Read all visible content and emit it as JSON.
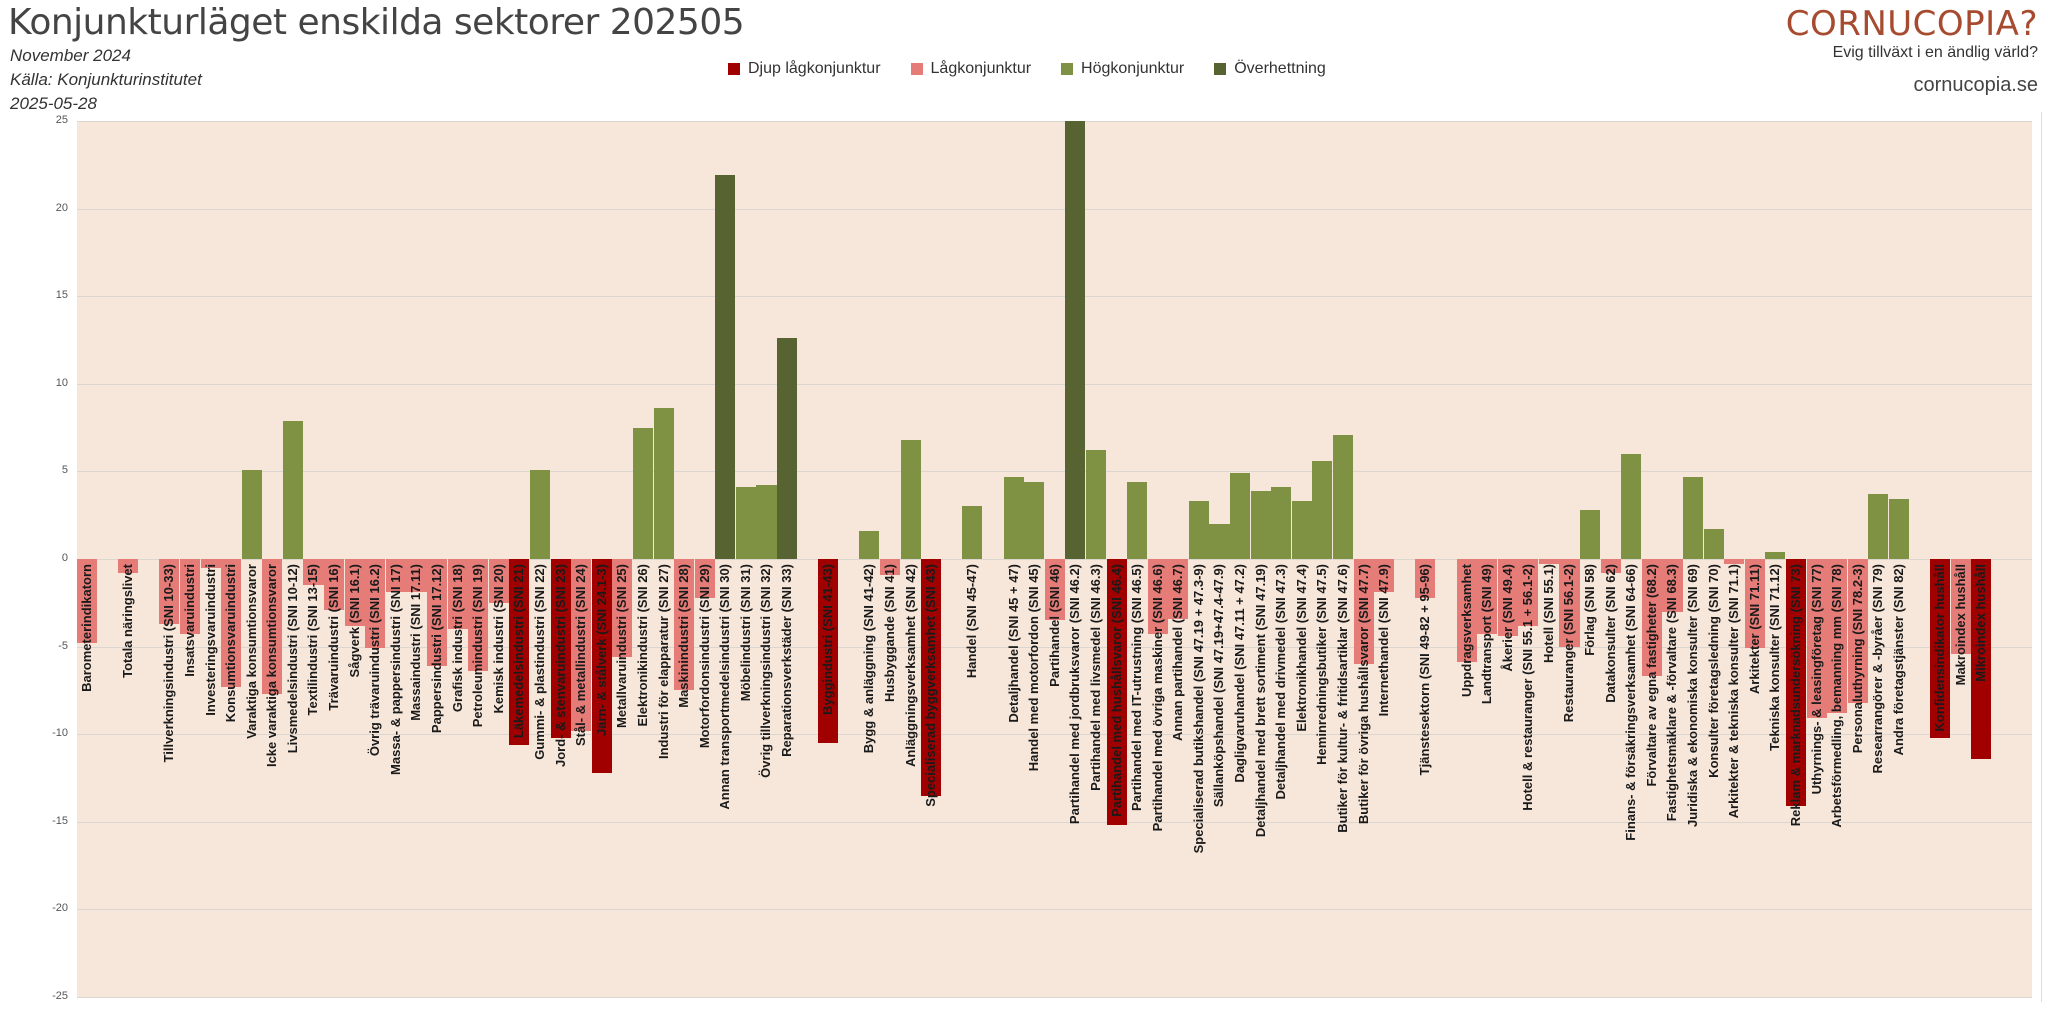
{
  "header": {
    "title": "Konjunkturläget enskilda sektorer 202505",
    "subtitle1": "November 2024",
    "subtitle2": "Källa: Konjunkturinstitutet",
    "subtitle3": "2025-05-28"
  },
  "logo": {
    "name": "CORNUCOPIA?",
    "tagline": "Evig tillväxt i en ändlig värld?",
    "url": "cornucopia.se"
  },
  "chart_data": {
    "type": "bar",
    "title": "Konjunkturläget enskilda sektorer 202505",
    "ylim": [
      -25,
      25
    ],
    "yticks": [
      25,
      20,
      15,
      10,
      5,
      0,
      -5,
      -10,
      -15,
      -20,
      -25
    ],
    "grid": true,
    "legend_position": "top-center",
    "legend": [
      {
        "key": "djup",
        "label": "Djup lågkonjunktur",
        "color": "#a00000"
      },
      {
        "key": "lag",
        "label": "Lågkonjunktur",
        "color": "#e57c78"
      },
      {
        "key": "hog",
        "label": "Högkonjunktur",
        "color": "#7f9143"
      },
      {
        "key": "over",
        "label": "Överhettning",
        "color": "#576331"
      }
    ],
    "bars": [
      {
        "label": "Barometerindikatorn",
        "value": -4.8,
        "cls": "lag"
      },
      {
        "label": "",
        "value": null,
        "cls": ""
      },
      {
        "label": "Totala näringslivet",
        "value": -0.8,
        "cls": "lag"
      },
      {
        "label": "",
        "value": null,
        "cls": ""
      },
      {
        "label": "Tillverkningsindustri (SNI 10-33)",
        "value": -3.7,
        "cls": "lag"
      },
      {
        "label": "Insatsvaruindustri",
        "value": -4.3,
        "cls": "lag"
      },
      {
        "label": "Investeringsvaruindustri",
        "value": -0.5,
        "cls": "lag"
      },
      {
        "label": "Konsumtionsvaruindustri",
        "value": -7.3,
        "cls": "lag"
      },
      {
        "label": "Varaktiga konsumtionsvaror",
        "value": 5.1,
        "cls": "hog"
      },
      {
        "label": "Icke varaktiga konsumtionsvaror",
        "value": -7.7,
        "cls": "lag"
      },
      {
        "label": "Livsmedelsindustri (SNI 10-12)",
        "value": 7.9,
        "cls": "hog"
      },
      {
        "label": "Textilindustri (SNI 13-15)",
        "value": -1.5,
        "cls": "lag"
      },
      {
        "label": "Trävaruindustri (SNI 16)",
        "value": -2.9,
        "cls": "lag"
      },
      {
        "label": "Sågverk (SNI 16.1)",
        "value": -3.8,
        "cls": "lag"
      },
      {
        "label": "Övrig trävaruindustri (SNI 16.2)",
        "value": -5.1,
        "cls": "lag"
      },
      {
        "label": "Massa- & pappersindustri (SNI 17)",
        "value": -1.9,
        "cls": "lag"
      },
      {
        "label": "Massaindustri (SNI 17.11)",
        "value": -1.9,
        "cls": "lag"
      },
      {
        "label": "Pappersindustri (SNI 17.12)",
        "value": -6.1,
        "cls": "lag"
      },
      {
        "label": "Grafisk industri (SNI 18)",
        "value": -4.0,
        "cls": "lag"
      },
      {
        "label": "Petroleumindustri (SNI 19)",
        "value": -6.4,
        "cls": "lag"
      },
      {
        "label": "Kemisk industri (SNI 20)",
        "value": -2.5,
        "cls": "lag"
      },
      {
        "label": "Läkemedelsindustri (SNI 21)",
        "value": -10.6,
        "cls": "djup"
      },
      {
        "label": "Gummi- & plastindustri (SNI 22)",
        "value": 5.1,
        "cls": "hog"
      },
      {
        "label": "Jord- & stenvaruindustri (SNI 23)",
        "value": -10.2,
        "cls": "djup"
      },
      {
        "label": "Stål- & metallindustri (SNI 24)",
        "value": -9.8,
        "cls": "lag"
      },
      {
        "label": "Järn- & stålverk (SNI 24.1-3)",
        "value": -12.2,
        "cls": "djup"
      },
      {
        "label": "Metallvaruindustri (SNI 25)",
        "value": -5.6,
        "cls": "lag"
      },
      {
        "label": "Elektronikindustri (SNI 26)",
        "value": 7.5,
        "cls": "hog"
      },
      {
        "label": "Industri för elapparatur (SNI 27)",
        "value": 8.6,
        "cls": "hog"
      },
      {
        "label": "Maskinindustri (SNI 28)",
        "value": -7.5,
        "cls": "lag"
      },
      {
        "label": "Motorfordonsindustri (SNI 29)",
        "value": -2.2,
        "cls": "lag"
      },
      {
        "label": "Annan transportmedelsindustri (SNI 30)",
        "value": 21.9,
        "cls": "over"
      },
      {
        "label": "Möbelindustri (SNI 31)",
        "value": 4.1,
        "cls": "hog"
      },
      {
        "label": "Övrig tillverkningsindustri (SNI 32)",
        "value": 4.2,
        "cls": "hog"
      },
      {
        "label": "Reparationsverkstäder (SNI 33)",
        "value": 12.6,
        "cls": "over"
      },
      {
        "label": "",
        "value": null,
        "cls": ""
      },
      {
        "label": "Byggindustri (SNI 41-43)",
        "value": -10.5,
        "cls": "djup"
      },
      {
        "label": "",
        "value": null,
        "cls": ""
      },
      {
        "label": "Bygg & anläggning (SNI 41-42)",
        "value": 1.6,
        "cls": "hog"
      },
      {
        "label": "Husbyggande (SNI 41)",
        "value": -0.9,
        "cls": "lag"
      },
      {
        "label": "Anläggningsverksamhet (SNI 42)",
        "value": 6.8,
        "cls": "hog"
      },
      {
        "label": "Specialiserad byggverksamhet (SNI 43)",
        "value": -13.5,
        "cls": "djup"
      },
      {
        "label": "",
        "value": null,
        "cls": ""
      },
      {
        "label": "Handel (SNI 45-47)",
        "value": 3.0,
        "cls": "hog"
      },
      {
        "label": "",
        "value": null,
        "cls": ""
      },
      {
        "label": "Detaljhandel (SNI 45 + 47)",
        "value": 4.7,
        "cls": "hog"
      },
      {
        "label": "Handel med motorfordon (SNI 45)",
        "value": 4.4,
        "cls": "hog"
      },
      {
        "label": "Partihandel (SNI 46)",
        "value": -3.5,
        "cls": "lag"
      },
      {
        "label": "Partihandel med jordbruksvaror (SNI 46.2)",
        "value": 25,
        "cls": "over"
      },
      {
        "label": "Partihandel med livsmedel (SNI 46.3)",
        "value": 6.2,
        "cls": "hog"
      },
      {
        "label": "Partihandel med hushållsvaror (SNI 46.4)",
        "value": -15.2,
        "cls": "djup"
      },
      {
        "label": "Partihandel med IT-utrustning (SNI 46.5)",
        "value": 4.4,
        "cls": "hog"
      },
      {
        "label": "Partihandel med övriga maskiner (SNI 46.6)",
        "value": -4.3,
        "cls": "lag"
      },
      {
        "label": "Annan partihandel (SNI 46.7)",
        "value": -3.4,
        "cls": "lag"
      },
      {
        "label": "Specialiserad butikshandel (SNI 47.19 + 47.3-9)",
        "value": 3.3,
        "cls": "hog"
      },
      {
        "label": "Sällanköpshandel (SNI 47.19+47.4-47.9)",
        "value": 2.0,
        "cls": "hog"
      },
      {
        "label": "Dagligvaruhandel (SNI 47.11 + 47.2)",
        "value": 4.9,
        "cls": "hog"
      },
      {
        "label": "Detaljhandel med brett sortiment (SNI 47.19)",
        "value": 3.9,
        "cls": "hog"
      },
      {
        "label": "Detaljhandel med drivmedel (SNI 47.3)",
        "value": 4.1,
        "cls": "hog"
      },
      {
        "label": "Elektronikhandel (SNI 47.4)",
        "value": 3.3,
        "cls": "hog"
      },
      {
        "label": "Heminredningsbutiker (SNI 47.5)",
        "value": 5.6,
        "cls": "hog"
      },
      {
        "label": "Butiker för kultur- & fritidsartiklar (SNI 47.6)",
        "value": 7.1,
        "cls": "hog"
      },
      {
        "label": "Butiker för övriga hushållsvaror (SNI 47.7)",
        "value": -6.0,
        "cls": "lag"
      },
      {
        "label": "Internethandel (SNI 47.9)",
        "value": -1.9,
        "cls": "lag"
      },
      {
        "label": "",
        "value": null,
        "cls": ""
      },
      {
        "label": "Tjänstesektorn (SNI 49-82 + 95-96)",
        "value": -2.2,
        "cls": "lag"
      },
      {
        "label": "",
        "value": null,
        "cls": ""
      },
      {
        "label": "Uppdragsverksamhet",
        "value": -5.9,
        "cls": "lag"
      },
      {
        "label": "Landtransport (SNI 49)",
        "value": -4.3,
        "cls": "lag"
      },
      {
        "label": "Åkerier (SNI 49.4)",
        "value": -4.4,
        "cls": "lag"
      },
      {
        "label": "Hotell & restauranger (SNI 55.1 + 56.1-2)",
        "value": -3.8,
        "cls": "lag"
      },
      {
        "label": "Hotell (SNI 55.1)",
        "value": -0.3,
        "cls": "lag"
      },
      {
        "label": "Restauranger (SNI 56.1-2)",
        "value": -5.0,
        "cls": "lag"
      },
      {
        "label": "Förlag (SNI 58)",
        "value": 2.8,
        "cls": "hog"
      },
      {
        "label": "Datakonsulter (SNI 62)",
        "value": -0.8,
        "cls": "lag"
      },
      {
        "label": "Finans- & försäkringsverksamhet (SNI 64-66)",
        "value": 6.0,
        "cls": "hog"
      },
      {
        "label": "Förvaltare av egna fastigheter (68.2)",
        "value": -6.7,
        "cls": "lag"
      },
      {
        "label": "Fastighetsmäklare & -förvaltare (SNI 68.3)",
        "value": -3.0,
        "cls": "lag"
      },
      {
        "label": "Juridiska & ekonomiska konsulter (SNI 69)",
        "value": 4.7,
        "cls": "hog"
      },
      {
        "label": "Konsulter företagsledning (SNI 70)",
        "value": 1.7,
        "cls": "hog"
      },
      {
        "label": "Arkitekter & tekniska konsulter (SNI 71.1)",
        "value": -0.3,
        "cls": "lag"
      },
      {
        "label": "Arkitekter (SNI 71.11)",
        "value": -5.1,
        "cls": "lag"
      },
      {
        "label": "Tekniska konsulter (SNI 71.12)",
        "value": 0.4,
        "cls": "hog"
      },
      {
        "label": "Reklam & marknadsundersökning (SNI 73)",
        "value": -14.1,
        "cls": "djup"
      },
      {
        "label": "Uthyrnings- & leasingföretag (SNI 77)",
        "value": -9.1,
        "cls": "lag"
      },
      {
        "label": "Arbetsförmedling, bemanning mm (SNI 78)",
        "value": -8.8,
        "cls": "lag"
      },
      {
        "label": "Personaluthyrning (SNI 78.2-3)",
        "value": -8.2,
        "cls": "lag"
      },
      {
        "label": "Researrangörer & -byråer (SNI 79)",
        "value": 3.7,
        "cls": "hog"
      },
      {
        "label": "Andra företagstjänster (SNI 82)",
        "value": 3.4,
        "cls": "hog"
      },
      {
        "label": "",
        "value": null,
        "cls": ""
      },
      {
        "label": "Konfidensindikator hushåll",
        "value": -10.2,
        "cls": "djup"
      },
      {
        "label": "Makroindex hushåll",
        "value": -5.4,
        "cls": "lag"
      },
      {
        "label": "Mikroindex hushåll",
        "value": -11.4,
        "cls": "djup"
      },
      {
        "label": "",
        "value": null,
        "cls": ""
      },
      {
        "label": "",
        "value": null,
        "cls": ""
      }
    ]
  }
}
